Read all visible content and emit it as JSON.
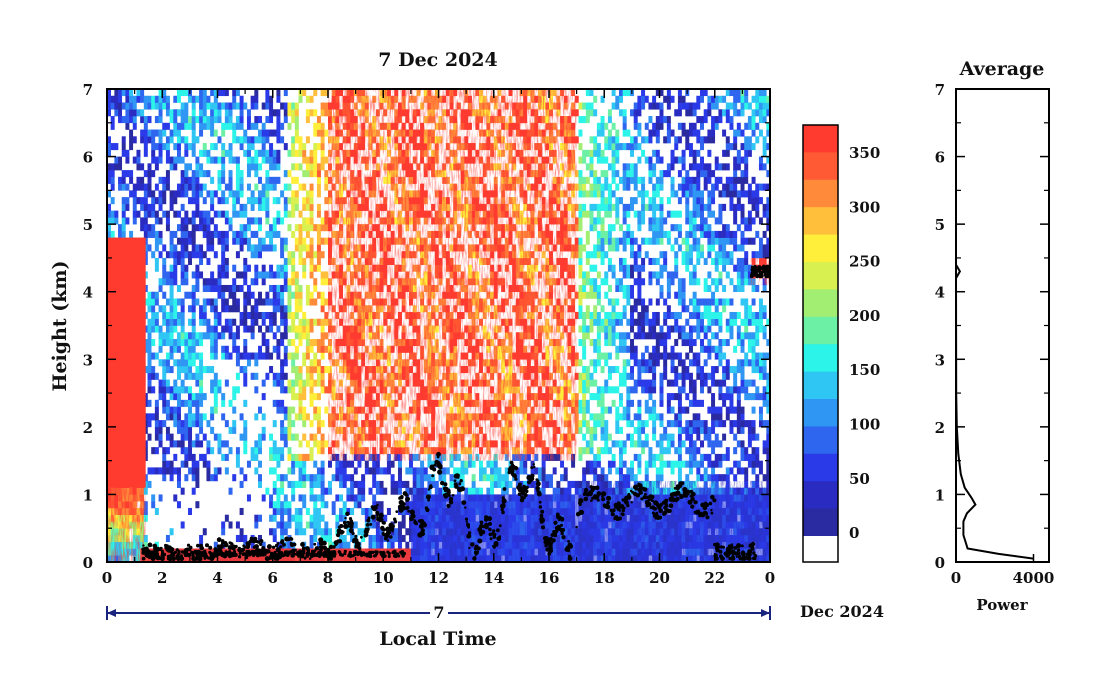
{
  "main_plot": {
    "title": "7 Dec 2024",
    "xlabel": "Local Time",
    "ylabel": "Height (km)",
    "x_ticks": [
      "0",
      "2",
      "4",
      "6",
      "8",
      "10",
      "12",
      "14",
      "16",
      "18",
      "20",
      "22",
      "0"
    ],
    "y_ticks": [
      "0",
      "1",
      "2",
      "3",
      "4",
      "5",
      "6",
      "7"
    ],
    "date_marker": "7",
    "date_suffix": "Dec 2024"
  },
  "colorbar": {
    "labels": [
      "350",
      "300",
      "250",
      "200",
      "150",
      "100",
      "50",
      "0"
    ],
    "colors": [
      "#ff3b30",
      "#ff5a33",
      "#ff8a3a",
      "#ffbf3a",
      "#ffef3a",
      "#d8f050",
      "#a2ee72",
      "#6cf0a6",
      "#2cf4e8",
      "#2fc6f4",
      "#3096f3",
      "#2f66f0",
      "#2a3ae8",
      "#2a2bc0",
      "#2a2ba0"
    ],
    "empty_color": "#ffffff"
  },
  "profile_plot": {
    "title": "Average",
    "xlabel": "Power",
    "x_ticks": [
      "0",
      "4000"
    ],
    "y_ticks": [
      "0",
      "1",
      "2",
      "3",
      "4",
      "5",
      "6",
      "7"
    ]
  },
  "chart_data": [
    {
      "type": "heatmap",
      "title": "7 Dec 2024",
      "xlabel": "Local Time",
      "ylabel": "Height (km)",
      "xlim": [
        0,
        24
      ],
      "ylim": [
        0,
        7
      ],
      "color_scale": {
        "min": 0,
        "max": 375,
        "ticks": [
          0,
          50,
          100,
          150,
          200,
          250,
          300,
          350
        ]
      },
      "features": [
        {
          "x_range": [
            0,
            1.4
          ],
          "y_range": [
            0,
            4.8
          ],
          "value": 360
        },
        {
          "x_range": [
            8,
            17
          ],
          "y_range": [
            1.5,
            7
          ],
          "value": 350
        },
        {
          "x_range": [
            11,
            17
          ],
          "y_range": [
            0,
            1
          ],
          "value": 60
        },
        {
          "x_range": [
            17,
            24
          ],
          "y_range": [
            0,
            1.2
          ],
          "value": 40
        },
        {
          "x_range": [
            23.3,
            24
          ],
          "y_range": [
            4.1,
            4.5
          ],
          "value": 380
        }
      ]
    },
    {
      "type": "line",
      "title": "Average",
      "xlabel": "Power",
      "xlim": [
        0,
        4800
      ],
      "ylim": [
        0,
        7
      ],
      "x": [
        4000,
        2200,
        600,
        380,
        380,
        560,
        1000,
        800,
        450,
        250,
        120,
        40,
        10,
        0,
        200,
        0,
        0
      ],
      "y": [
        0.05,
        0.12,
        0.2,
        0.4,
        0.6,
        0.72,
        0.85,
        0.95,
        1.1,
        1.3,
        1.6,
        2.0,
        2.5,
        4.2,
        4.3,
        4.4,
        7.0
      ]
    }
  ]
}
